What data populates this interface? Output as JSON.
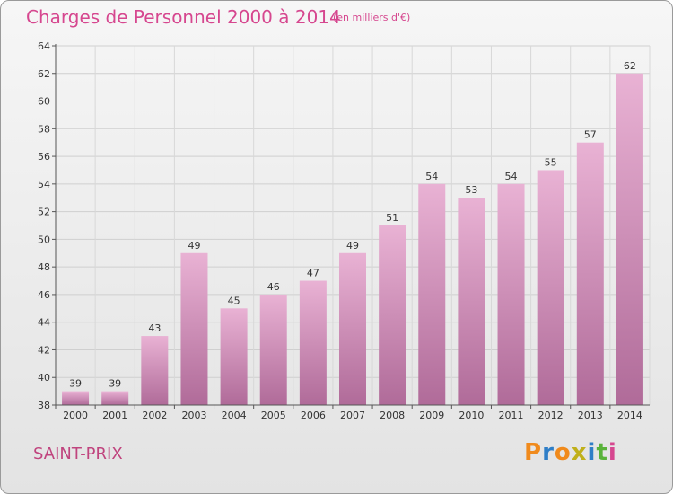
{
  "header": {
    "title": "Charges de Personnel 2000 à 2014",
    "subtitle": "(en milliers d'€)"
  },
  "footer": {
    "commune": "SAINT-PRIX",
    "logo": "Proxiti"
  },
  "colors": {
    "title": "#d6478f",
    "bar_top": "#e9b2d4",
    "bar_bottom": "#b06b99",
    "logo": [
      "#f08a1c",
      "#2f7ec7",
      "#f08a1c",
      "#c0b01a",
      "#2f7ec7",
      "#5ab33b",
      "#d6478f"
    ]
  },
  "chart_data": {
    "type": "bar",
    "categories": [
      "2000",
      "2001",
      "2002",
      "2003",
      "2004",
      "2005",
      "2006",
      "2007",
      "2008",
      "2009",
      "2010",
      "2011",
      "2012",
      "2013",
      "2014"
    ],
    "values": [
      39,
      39,
      43,
      49,
      45,
      46,
      47,
      49,
      51,
      54,
      53,
      54,
      55,
      57,
      62
    ],
    "ylim": [
      38,
      64
    ],
    "yticks": [
      38,
      40,
      42,
      44,
      46,
      48,
      50,
      52,
      54,
      56,
      58,
      60,
      62,
      64
    ],
    "grid": true,
    "legend": "none"
  }
}
